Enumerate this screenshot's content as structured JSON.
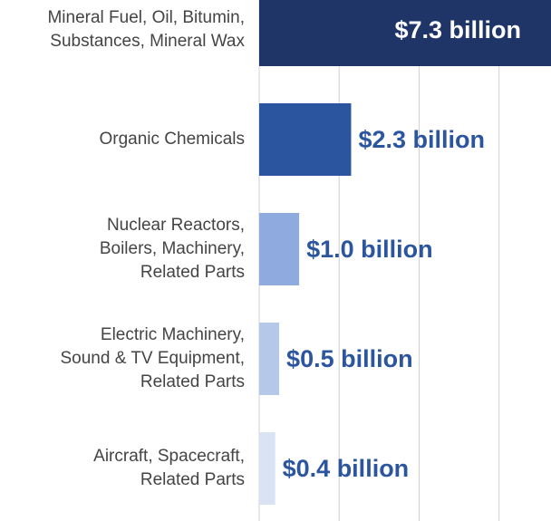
{
  "chart_data": {
    "type": "bar",
    "orientation": "horizontal",
    "categories": [
      "Mineral Fuel, Oil, Bitumin,\nSubstances, Mineral Wax",
      "Organic Chemicals",
      "Nuclear Reactors,\nBoilers, Machinery,\nRelated Parts",
      "Electric Machinery,\nSound & TV Equipment,\nRelated Parts",
      "Aircraft, Spacecraft,\nRelated Parts"
    ],
    "values": [
      7.3,
      2.3,
      1.0,
      0.5,
      0.4
    ],
    "value_labels": [
      "$7.3 billion",
      "$2.3 billion",
      "$1.0 billion",
      "$0.5 billion",
      "$0.4 billion"
    ],
    "colors": [
      "#1f3568",
      "#2b559e",
      "#8eaadf",
      "#b5c8ea",
      "#d9e3f4"
    ],
    "xlim": [
      0,
      7.3
    ],
    "xticks": [
      0,
      2,
      4,
      6
    ],
    "show_tick_labels": false,
    "grid": true
  }
}
